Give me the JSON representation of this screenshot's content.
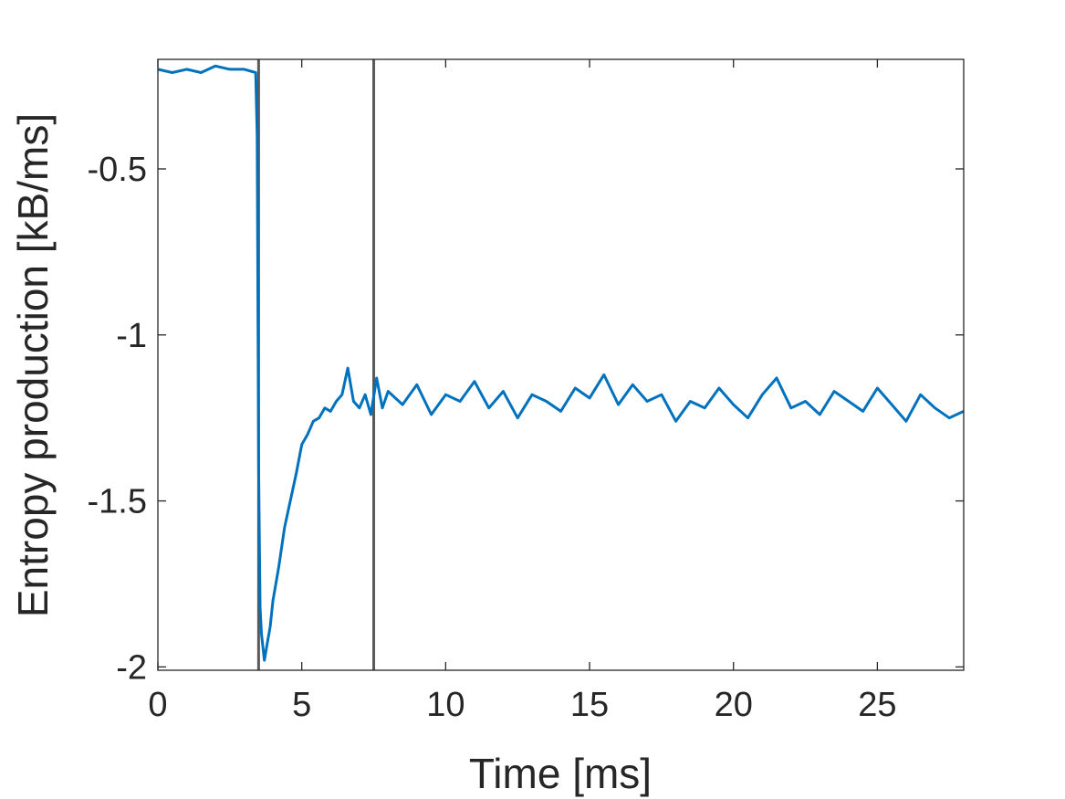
{
  "chart_data": {
    "type": "line",
    "title": "",
    "xlabel": "Time [ms]",
    "ylabel": "Entropy production [kB/ms]",
    "xlim": [
      0,
      28
    ],
    "ylim": [
      -2.01,
      -0.17
    ],
    "xticks": [
      0,
      5,
      10,
      15,
      20,
      25
    ],
    "xtick_labels": [
      "0",
      "5",
      "10",
      "15",
      "20",
      "25"
    ],
    "yticks": [
      -2,
      -1.5,
      -1,
      -0.5
    ],
    "ytick_labels": [
      "-2",
      "-1.5",
      "-1",
      "-0.5"
    ],
    "grid": false,
    "box": true,
    "vertical_lines": [
      3.5,
      7.5
    ],
    "vertical_line_color": "#595959",
    "series": [
      {
        "color": "#0072BD",
        "x": [
          0,
          0.5,
          1.0,
          1.5,
          2.0,
          2.5,
          3.0,
          3.4,
          3.45,
          3.5,
          3.55,
          3.6,
          3.7,
          3.8,
          3.9,
          4.0,
          4.2,
          4.4,
          4.6,
          4.8,
          5.0,
          5.2,
          5.4,
          5.6,
          5.8,
          6.0,
          6.2,
          6.4,
          6.6,
          6.8,
          7.0,
          7.2,
          7.4,
          7.6,
          7.8,
          8.0,
          8.5,
          9.0,
          9.5,
          10.0,
          10.5,
          11.0,
          11.5,
          12.0,
          12.5,
          13.0,
          13.5,
          14.0,
          14.5,
          15.0,
          15.5,
          16.0,
          16.5,
          17.0,
          17.5,
          18.0,
          18.5,
          19.0,
          19.5,
          20.0,
          20.5,
          21.0,
          21.5,
          22.0,
          22.5,
          23.0,
          23.5,
          24.0,
          24.5,
          25.0,
          25.5,
          26.0,
          26.5,
          27.0,
          27.5,
          28.0
        ],
        "y": [
          -0.2,
          -0.21,
          -0.2,
          -0.21,
          -0.19,
          -0.2,
          -0.2,
          -0.21,
          -0.4,
          -1.4,
          -1.82,
          -1.9,
          -1.98,
          -1.93,
          -1.88,
          -1.8,
          -1.7,
          -1.58,
          -1.5,
          -1.42,
          -1.33,
          -1.3,
          -1.26,
          -1.25,
          -1.22,
          -1.23,
          -1.2,
          -1.18,
          -1.1,
          -1.2,
          -1.22,
          -1.18,
          -1.24,
          -1.13,
          -1.22,
          -1.17,
          -1.21,
          -1.15,
          -1.24,
          -1.18,
          -1.2,
          -1.14,
          -1.22,
          -1.17,
          -1.25,
          -1.18,
          -1.2,
          -1.23,
          -1.16,
          -1.19,
          -1.12,
          -1.21,
          -1.15,
          -1.2,
          -1.18,
          -1.26,
          -1.2,
          -1.22,
          -1.16,
          -1.21,
          -1.25,
          -1.18,
          -1.13,
          -1.22,
          -1.2,
          -1.24,
          -1.17,
          -1.2,
          -1.23,
          -1.16,
          -1.21,
          -1.26,
          -1.18,
          -1.22,
          -1.25,
          -1.23
        ]
      }
    ]
  }
}
